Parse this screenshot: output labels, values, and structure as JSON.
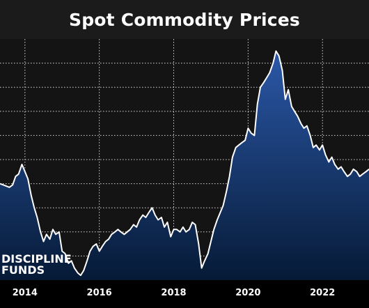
{
  "chart_data": {
    "type": "area",
    "title": "Spot Commodity Prices",
    "xlabel": "",
    "ylabel": "",
    "xlim": [
      2013.33,
      2023.25
    ],
    "ylim": [
      0,
      10
    ],
    "x_ticks": [
      "2014",
      "2016",
      "2018",
      "2020",
      "2022"
    ],
    "grid": true,
    "colors": {
      "area_top": "#2b58a8",
      "area_bottom": "#061a36",
      "line": "#ffffff",
      "grid": "#d9d9d9",
      "plot_bg": "#141414"
    },
    "series": [
      {
        "x": [
          2013.33,
          2013.5,
          2013.58,
          2013.67,
          2013.75,
          2013.83,
          2013.92,
          2014.0,
          2014.08,
          2014.17,
          2014.25,
          2014.33,
          2014.42,
          2014.5,
          2014.58,
          2014.67,
          2014.75,
          2014.83,
          2014.92,
          2015.0,
          2015.08,
          2015.17,
          2015.25,
          2015.33,
          2015.42,
          2015.5,
          2015.58,
          2015.67,
          2015.75,
          2015.83,
          2015.92,
          2016.0,
          2016.08,
          2016.17,
          2016.25,
          2016.33,
          2016.42,
          2016.5,
          2016.58,
          2016.67,
          2016.75,
          2016.83,
          2016.92,
          2017.0,
          2017.08,
          2017.17,
          2017.25,
          2017.33,
          2017.42,
          2017.5,
          2017.58,
          2017.67,
          2017.75,
          2017.83,
          2017.92,
          2018.0,
          2018.08,
          2018.17,
          2018.25,
          2018.33,
          2018.42,
          2018.5,
          2018.58,
          2018.67,
          2018.75,
          2018.83,
          2018.92,
          2019.0,
          2019.08,
          2019.17,
          2019.25,
          2019.33,
          2019.42,
          2019.5,
          2019.58,
          2019.67,
          2019.75,
          2019.83,
          2019.92,
          2020.0,
          2020.08,
          2020.17,
          2020.25,
          2020.33,
          2020.42,
          2020.5,
          2020.58,
          2020.67,
          2020.75,
          2020.83,
          2020.92,
          2021.0,
          2021.08,
          2021.17,
          2021.25,
          2021.33,
          2021.42,
          2021.5,
          2021.58,
          2021.67,
          2021.75,
          2021.83,
          2021.92,
          2022.0,
          2022.08,
          2022.17,
          2022.25,
          2022.33,
          2022.42,
          2022.5,
          2022.58,
          2022.67,
          2022.75,
          2022.83,
          2022.92,
          2023.0,
          2023.08,
          2023.17,
          2023.25
        ],
        "values": [
          4.0,
          3.9,
          3.85,
          3.95,
          4.3,
          4.4,
          4.8,
          4.5,
          4.2,
          3.5,
          3.0,
          2.6,
          2.0,
          1.6,
          1.9,
          1.7,
          2.1,
          1.9,
          2.0,
          1.2,
          1.1,
          0.7,
          0.8,
          0.5,
          0.3,
          0.2,
          0.4,
          0.8,
          1.2,
          1.4,
          1.5,
          1.2,
          1.4,
          1.6,
          1.7,
          1.9,
          2.0,
          2.1,
          2.0,
          1.9,
          2.0,
          2.1,
          2.3,
          2.2,
          2.5,
          2.7,
          2.6,
          2.8,
          3.0,
          2.7,
          2.5,
          2.6,
          2.2,
          2.4,
          1.8,
          2.1,
          2.1,
          2.0,
          2.2,
          2.0,
          2.1,
          2.4,
          2.3,
          1.5,
          0.5,
          0.8,
          1.1,
          1.6,
          2.1,
          2.5,
          2.8,
          3.1,
          3.7,
          4.3,
          5.1,
          5.5,
          5.6,
          5.7,
          5.8,
          6.3,
          6.1,
          6.0,
          7.3,
          8.0,
          8.2,
          8.4,
          8.6,
          9.0,
          9.5,
          9.3,
          8.7,
          7.5,
          7.9,
          7.2,
          7.0,
          6.8,
          6.5,
          6.3,
          6.4,
          6.0,
          5.5,
          5.6,
          5.4,
          5.6,
          5.2,
          4.9,
          5.1,
          4.8,
          4.6,
          4.7,
          4.5,
          4.3,
          4.4,
          4.6,
          4.5,
          4.3,
          4.4,
          4.5,
          4.6
        ]
      }
    ]
  },
  "watermark": {
    "line1": "DISCIPLINE",
    "line2": "FUNDS"
  }
}
